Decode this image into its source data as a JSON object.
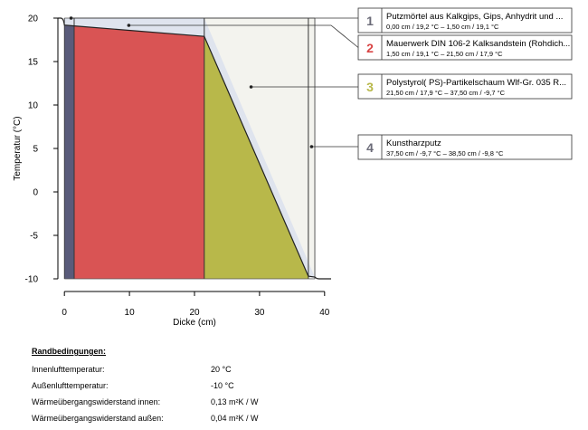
{
  "chart_data": {
    "type": "area",
    "xlabel": "Dicke (cm)",
    "ylabel": "Temperatur (°C)",
    "xlim": [
      -1,
      41
    ],
    "ylim": [
      -10,
      20
    ],
    "xticks": [
      0,
      10,
      20,
      30,
      40
    ],
    "yticks": [
      20,
      15,
      10,
      5,
      0,
      -5,
      -10
    ],
    "grid": false,
    "boundary_inside_temp": 20,
    "boundary_outside_temp": -10,
    "layers": [
      {
        "num": "1",
        "name": "Putzmörtel aus Kalkgips, Gips, Anhydrit und ...",
        "x0": 0.0,
        "x1": 1.5,
        "t0": 19.2,
        "t1": 19.1,
        "range": "0,00 cm / 19,2 °C  –  1,50 cm / 19,1 °C",
        "color": "#595b7a",
        "num_color": "#6b6b78"
      },
      {
        "num": "2",
        "name": "Mauerwerk DIN 106-2 Kalksandstein (Rohdich...",
        "x0": 1.5,
        "x1": 21.5,
        "t0": 19.1,
        "t1": 17.9,
        "range": "1,50 cm / 19,1 °C  –  21,50 cm / 17,9 °C",
        "color": "#d95454",
        "num_color": "#d94545"
      },
      {
        "num": "3",
        "name": "Polystyrol( PS)-Partikelschaum Wlf-Gr. 035 R...",
        "x0": 21.5,
        "x1": 37.5,
        "t0": 17.9,
        "t1": -9.7,
        "range": "21,50 cm / 17,9 °C  –  37,50 cm / -9,7 °C",
        "color": "#b8b84a",
        "num_color": "#b8b84a"
      },
      {
        "num": "4",
        "name": "Kunstharzputz",
        "x0": 37.5,
        "x1": 38.5,
        "t0": -9.7,
        "t1": -9.8,
        "range": "37,50 cm / -9,7 °C  –  38,50 cm / -9,8 °C",
        "color": "#eeeeee",
        "num_color": "#6b6b78"
      }
    ],
    "surface_temp_inside": 19.2,
    "surface_temp_outside": -9.8
  },
  "conditions": {
    "title": "Randbedingungen:",
    "rows": [
      {
        "label": "Innenlufttemperatur:",
        "value": "20 °C"
      },
      {
        "label": "Außenlufttemperatur:",
        "value": "-10 °C"
      },
      {
        "label": "Wärmeübergangswiderstand innen:",
        "value": "0,13 m²K / W"
      },
      {
        "label": "Wärmeübergangswiderstand außen:",
        "value": "0,04 m²K / W"
      }
    ]
  }
}
